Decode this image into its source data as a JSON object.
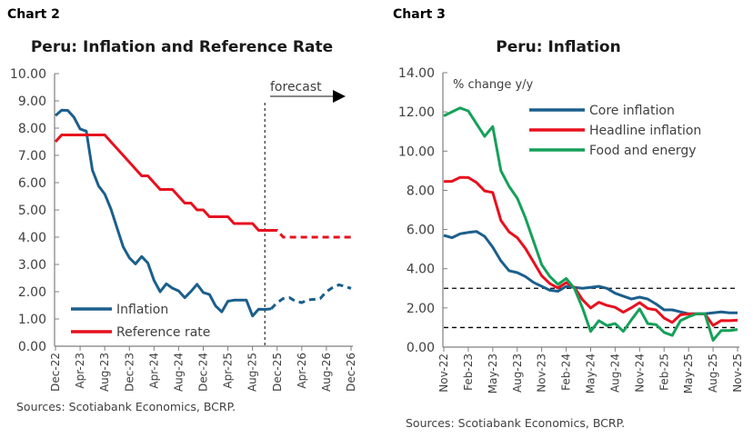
{
  "chart_data": [
    {
      "type": "line",
      "label": "Chart 2",
      "title": "Peru: Inflation and Reference Rate",
      "source": "Sources: Scotiabank Economics, BCRP.",
      "ylim": [
        0,
        10
      ],
      "yticks": [
        "0.00",
        "1.00",
        "2.00",
        "3.00",
        "4.00",
        "5.00",
        "6.00",
        "7.00",
        "8.00",
        "9.00",
        "10.00"
      ],
      "x_start": "Dec-22",
      "x_end": "Dec-26",
      "xtick_labels": [
        "Dec-22",
        "Apr-23",
        "Aug-23",
        "Dec-23",
        "Apr-24",
        "Aug-24",
        "Dec-24",
        "Apr-25",
        "Aug-25",
        "Dec-25",
        "Apr-26",
        "Aug-26",
        "Dec-26"
      ],
      "forecast_label": "forecast",
      "forecast_start": "Oct-25",
      "grid": false,
      "legend": "bottom-left",
      "series": [
        {
          "name": "Inflation",
          "color": "#1b5f8c",
          "actual_points": 36,
          "values": [
            8.46,
            8.66,
            8.65,
            8.4,
            7.97,
            7.89,
            6.46,
            5.88,
            5.58,
            5.04,
            4.34,
            3.64,
            3.24,
            3.02,
            3.29,
            3.05,
            2.42,
            2.0,
            2.29,
            2.13,
            2.03,
            1.78,
            2.01,
            2.27,
            1.97,
            1.9,
            1.48,
            1.26,
            1.65,
            1.69,
            1.69,
            1.69,
            1.11,
            1.36,
            1.35,
            1.37,
            1.6,
            1.75,
            1.78,
            1.65,
            1.6,
            1.7,
            1.72,
            1.75,
            2.0,
            2.15,
            2.25,
            2.2,
            2.12
          ]
        },
        {
          "name": "Reference rate",
          "color": "#e8101e",
          "actual_points": 36,
          "values": [
            7.5,
            7.75,
            7.75,
            7.75,
            7.75,
            7.75,
            7.75,
            7.75,
            7.75,
            7.5,
            7.25,
            7.0,
            6.75,
            6.5,
            6.25,
            6.25,
            6.0,
            5.75,
            5.75,
            5.75,
            5.5,
            5.25,
            5.25,
            5.0,
            5.0,
            4.75,
            4.75,
            4.75,
            4.75,
            4.5,
            4.5,
            4.5,
            4.5,
            4.25,
            4.25,
            4.25,
            4.25,
            4.0,
            4.0,
            4.0,
            4.0,
            4.0,
            4.0,
            4.0,
            4.0,
            4.0,
            4.0,
            4.0,
            4.0
          ]
        }
      ]
    },
    {
      "type": "line",
      "label": "Chart 3",
      "title": "Peru: Inflation",
      "source": "Sources: Scotiabank Economics, BCRP.",
      "ylabel": "% change y/y",
      "ylim": [
        0,
        14
      ],
      "yticks": [
        "0.00",
        "2.00",
        "4.00",
        "6.00",
        "8.00",
        "10.00",
        "12.00",
        "14.00"
      ],
      "x_start": "Nov-22",
      "x_end": "Nov-25",
      "xtick_labels": [
        "Nov-22",
        "Feb-23",
        "May-23",
        "Aug-23",
        "Nov-23",
        "Feb-24",
        "May-24",
        "Aug-24",
        "Nov-24",
        "Feb-25",
        "May-25",
        "Aug-25",
        "Nov-25"
      ],
      "reference_lines": [
        3,
        1
      ],
      "grid": false,
      "legend": "top-right",
      "series": [
        {
          "name": "Core inflation",
          "color": "#1b5f8c",
          "values": [
            5.7,
            5.58,
            5.78,
            5.85,
            5.9,
            5.65,
            5.1,
            4.4,
            3.9,
            3.8,
            3.6,
            3.3,
            3.1,
            2.9,
            2.85,
            3.1,
            3.05,
            3.0,
            3.05,
            3.1,
            3.0,
            2.75,
            2.6,
            2.45,
            2.55,
            2.45,
            2.2,
            1.9,
            1.9,
            1.8,
            1.7,
            1.7,
            1.7,
            1.75,
            1.8,
            1.75,
            1.75
          ]
        },
        {
          "name": "Headline inflation",
          "color": "#e8101e",
          "values": [
            8.45,
            8.46,
            8.66,
            8.65,
            8.4,
            7.97,
            7.89,
            6.46,
            5.88,
            5.58,
            5.04,
            4.34,
            3.64,
            3.24,
            3.02,
            3.29,
            3.05,
            2.42,
            2.0,
            2.29,
            2.13,
            2.03,
            1.78,
            2.01,
            2.27,
            1.97,
            1.9,
            1.48,
            1.26,
            1.65,
            1.69,
            1.69,
            1.69,
            1.11,
            1.36,
            1.35,
            1.37
          ]
        },
        {
          "name": "Food and energy",
          "color": "#16a05a",
          "values": [
            11.8,
            12.0,
            12.2,
            12.05,
            11.4,
            10.75,
            11.25,
            9.0,
            8.2,
            7.6,
            6.6,
            5.4,
            4.2,
            3.6,
            3.2,
            3.5,
            3.0,
            2.0,
            0.8,
            1.35,
            1.1,
            1.2,
            0.8,
            1.4,
            1.95,
            1.2,
            1.15,
            0.75,
            0.6,
            1.35,
            1.55,
            1.7,
            1.7,
            0.35,
            0.85,
            0.85,
            0.9
          ]
        }
      ]
    }
  ]
}
